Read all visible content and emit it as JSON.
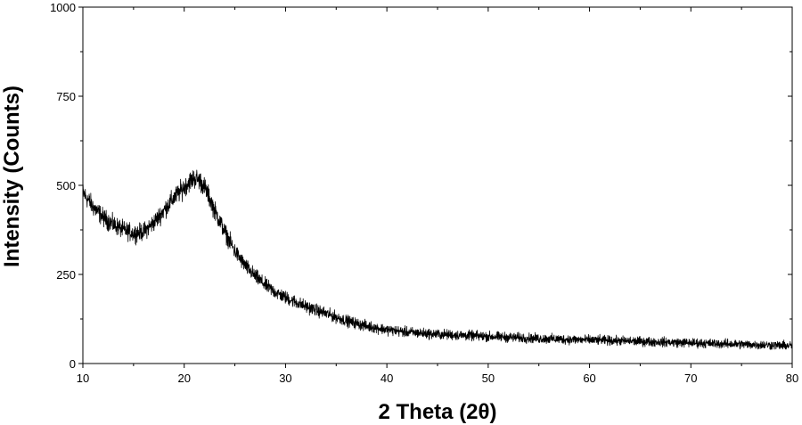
{
  "chart_data": {
    "type": "line",
    "title": "",
    "xlabel": "2 Theta (2θ)",
    "ylabel": "Intensity (Counts)",
    "xlim": [
      10,
      80
    ],
    "ylim": [
      0,
      1000
    ],
    "x_ticks": [
      10,
      20,
      30,
      40,
      50,
      60,
      70,
      80
    ],
    "y_ticks": [
      0,
      250,
      500,
      750,
      1000
    ],
    "grid": false,
    "legend": "none",
    "line_color": "#000000",
    "x_step": 0.02,
    "noise_amplitude_counts": 20,
    "series": [
      {
        "x": [
          10,
          11,
          12,
          13,
          14,
          15,
          16,
          17,
          18,
          19,
          20,
          20.5,
          21,
          21.5,
          22,
          22.5,
          23,
          24,
          25,
          26,
          27,
          28,
          29,
          30,
          32,
          34,
          36,
          38,
          40,
          42,
          45,
          50,
          55,
          60,
          65,
          70,
          75,
          80
        ],
        "values": [
          480,
          440,
          410,
          390,
          375,
          365,
          370,
          395,
          430,
          465,
          495,
          510,
          520,
          515,
          495,
          465,
          430,
          370,
          315,
          275,
          245,
          220,
          200,
          185,
          160,
          140,
          120,
          105,
          95,
          88,
          82,
          76,
          70,
          66,
          62,
          58,
          54,
          50
        ]
      }
    ]
  }
}
